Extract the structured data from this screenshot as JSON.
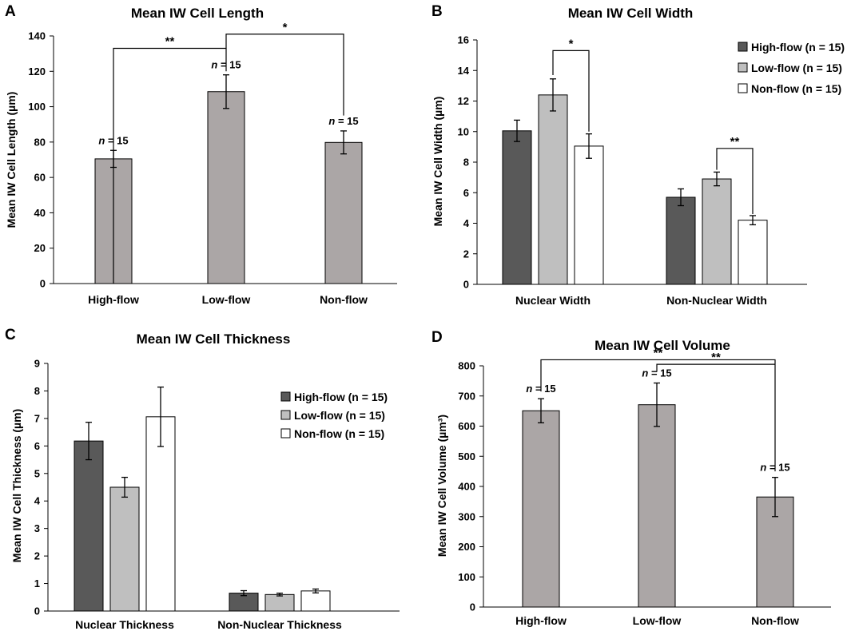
{
  "colors": {
    "single_bar": "#aba6a6",
    "high_flow": "#595959",
    "low_flow": "#bfbfbf",
    "non_flow": "#ffffff",
    "stroke": "#000000"
  },
  "chart_data": [
    {
      "type": "bar",
      "panel": "A",
      "title": "Mean IW Cell Length",
      "xlabel": "",
      "ylabel": "Mean IW Cell Length (µm)",
      "ylim": [
        0,
        140
      ],
      "ytick_step": 20,
      "yticks": [
        "0",
        "20",
        "40",
        "60",
        "80",
        "100",
        "120",
        "140"
      ],
      "categories": [
        "High-flow",
        "Low-flow",
        "Non-flow"
      ],
      "series": [
        {
          "name": "Mean IW Cell Length",
          "color_key": "single_bar",
          "values": [
            70.5,
            108.5,
            79.8
          ],
          "errors": [
            4.8,
            9.5,
            6.5
          ]
        }
      ],
      "annotations": [
        {
          "text": "n = 15",
          "category": 0
        },
        {
          "text": "n = 15",
          "category": 1
        },
        {
          "text": "n = 15",
          "category": 2
        }
      ],
      "significance": [
        {
          "label": "**",
          "from": 0,
          "to": 1,
          "level": 133,
          "drop_from": 0,
          "drop_to": 120
        },
        {
          "label": "*",
          "from": 1,
          "to": 2,
          "level": 141,
          "drop_from": 133,
          "drop_to": 95
        }
      ]
    },
    {
      "type": "bar",
      "panel": "B",
      "title": "Mean IW Cell Width",
      "xlabel": "",
      "ylabel": "Mean IW Cell Width (µm)",
      "ylim": [
        0,
        16
      ],
      "ytick_step": 2,
      "yticks": [
        "0",
        "2",
        "4",
        "6",
        "8",
        "10",
        "12",
        "14",
        "16"
      ],
      "categories": [
        "Nuclear Width",
        "Non-Nuclear Width"
      ],
      "series": [
        {
          "name": "High-flow (n = 15)",
          "color_key": "high_flow",
          "values": [
            10.05,
            5.7
          ],
          "errors": [
            0.7,
            0.55
          ]
        },
        {
          "name": "Low-flow (n = 15)",
          "color_key": "low_flow",
          "values": [
            12.4,
            6.9
          ],
          "errors": [
            1.05,
            0.45
          ]
        },
        {
          "name": "Non-flow (n = 15)",
          "color_key": "non_flow",
          "values": [
            9.05,
            4.2
          ],
          "errors": [
            0.8,
            0.3
          ]
        }
      ],
      "legend": {
        "entries": [
          "High-flow (n = 15)",
          "Low-flow (n = 15)",
          "Non-flow (n = 15)"
        ],
        "placement": "top-right"
      },
      "significance": [
        {
          "label": "*",
          "category": 0,
          "from_series": 1,
          "to_series": 2,
          "level": 15.3,
          "drop_from": 13.7,
          "drop_to": 10.0
        },
        {
          "label": "**",
          "category": 1,
          "from_series": 1,
          "to_series": 2,
          "level": 8.9,
          "drop_from": 7.5,
          "drop_to": 4.6
        }
      ]
    },
    {
      "type": "bar",
      "panel": "C",
      "title": "Mean IW Cell Thickness",
      "xlabel": "",
      "ylabel": "Mean IW Cell Thickness (µm)",
      "ylim": [
        0,
        9
      ],
      "ytick_step": 1,
      "yticks": [
        "0",
        "1",
        "2",
        "3",
        "4",
        "5",
        "6",
        "7",
        "8",
        "9"
      ],
      "categories": [
        "Nuclear Thickness",
        "Non-Nuclear Thickness"
      ],
      "series": [
        {
          "name": "High-flow (n = 15)",
          "color_key": "high_flow",
          "values": [
            6.18,
            0.65
          ],
          "errors": [
            0.68,
            0.09
          ]
        },
        {
          "name": "Low-flow (n = 15)",
          "color_key": "low_flow",
          "values": [
            4.5,
            0.6
          ],
          "errors": [
            0.36,
            0.05
          ]
        },
        {
          "name": "Non-flow (n = 15)",
          "color_key": "non_flow",
          "values": [
            7.06,
            0.73
          ],
          "errors": [
            1.08,
            0.07
          ]
        }
      ],
      "legend": {
        "entries": [
          "High-flow (n = 15)",
          "Low-flow (n = 15)",
          "Non-flow (n = 15)"
        ],
        "placement": "right"
      },
      "significance": []
    },
    {
      "type": "bar",
      "panel": "D",
      "title": "Mean IW Cell Volume",
      "xlabel": "",
      "ylabel": "Mean IW Cell Volume (µm³)",
      "ylim": [
        0,
        800
      ],
      "ytick_step": 100,
      "yticks": [
        "0",
        "100",
        "200",
        "300",
        "400",
        "500",
        "600",
        "700",
        "800"
      ],
      "categories": [
        "High-flow",
        "Low-flow",
        "Non-flow"
      ],
      "series": [
        {
          "name": "Mean IW Cell Volume",
          "color_key": "single_bar",
          "values": [
            651,
            671,
            365
          ],
          "errors": [
            40,
            72,
            65
          ]
        }
      ],
      "annotations": [
        {
          "text": "n = 15",
          "category": 0
        },
        {
          "text": "n = 15",
          "category": 1
        },
        {
          "text": "n = 15",
          "category": 2
        }
      ],
      "significance": [
        {
          "label": "**",
          "from": 0,
          "to": 2,
          "level": 820,
          "drop_from": 715,
          "drop_to": 450
        },
        {
          "label": "**",
          "from": 1,
          "to": 2,
          "level": 805,
          "drop_from": 780,
          "drop_to": 805
        }
      ]
    }
  ]
}
